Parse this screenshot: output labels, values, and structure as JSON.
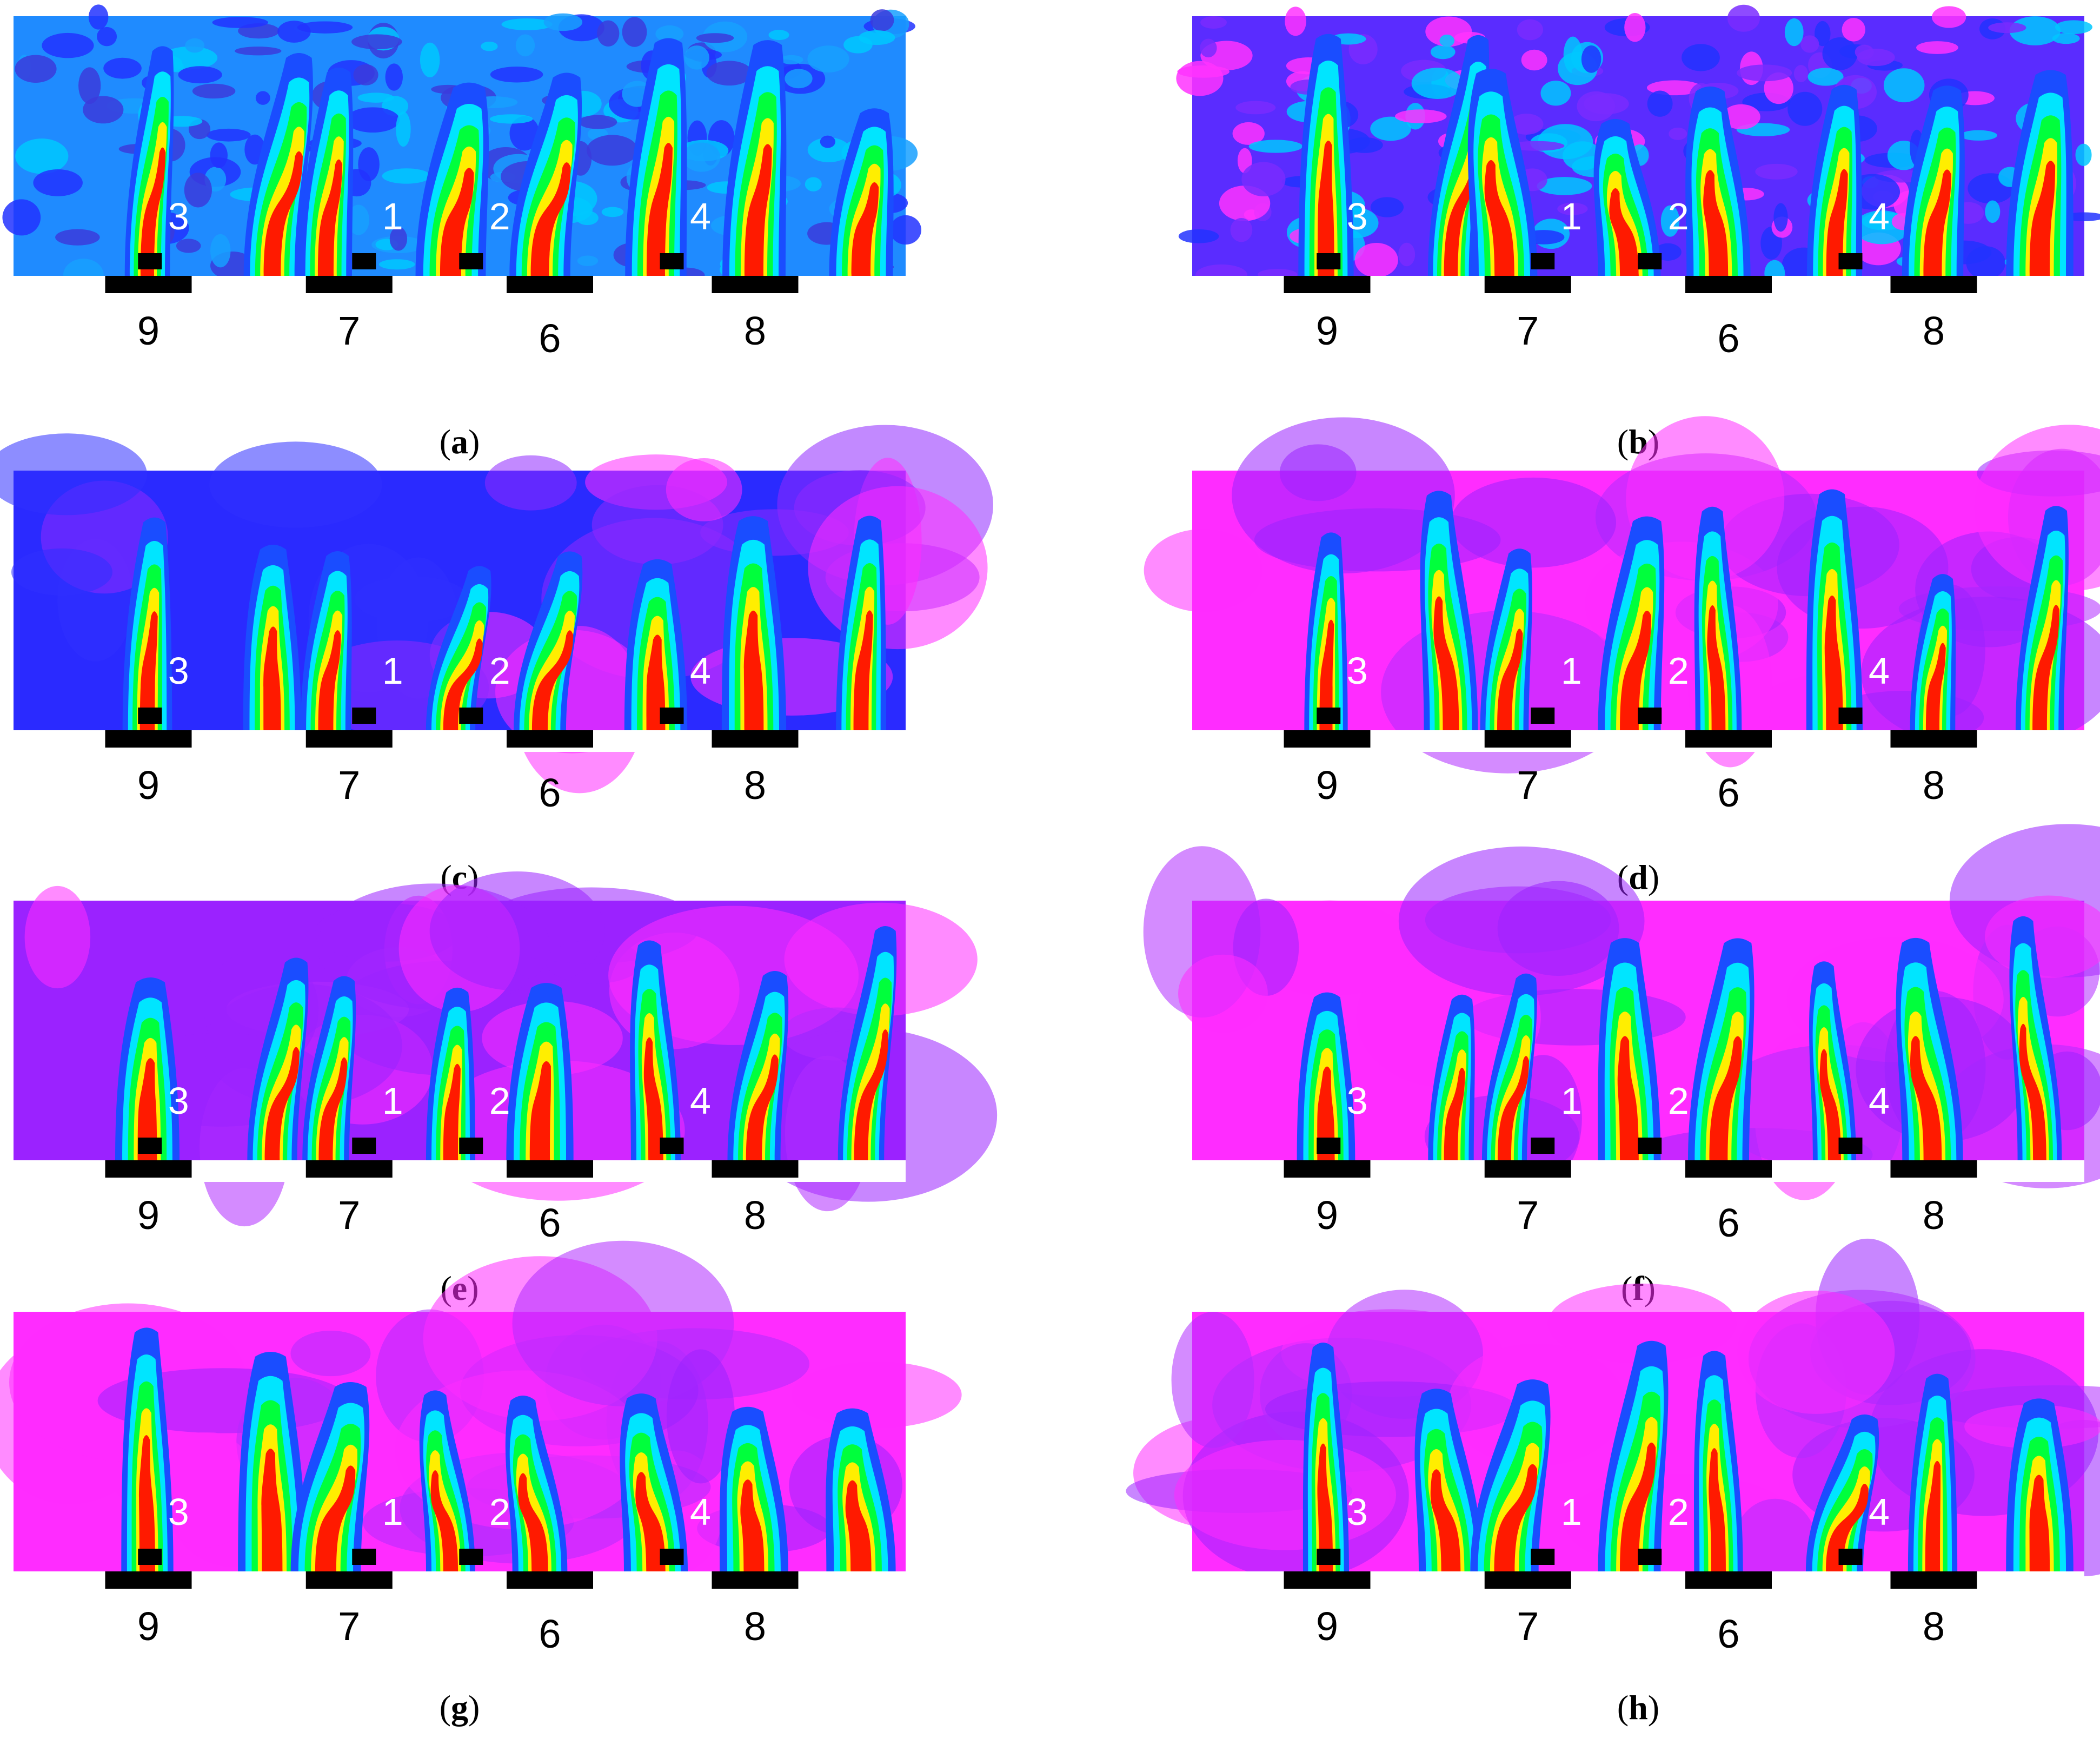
{
  "figure": {
    "panels": [
      {
        "id": "a",
        "caption": "a",
        "palette": "noisy_blue"
      },
      {
        "id": "b",
        "caption": "b",
        "palette": "noisy_purple"
      },
      {
        "id": "c",
        "caption": "c",
        "palette": "smooth_blue"
      },
      {
        "id": "d",
        "caption": "d",
        "palette": "smooth_magenta"
      },
      {
        "id": "e",
        "caption": "e",
        "palette": "smooth_violet"
      },
      {
        "id": "f",
        "caption": "f",
        "palette": "smooth_magenta"
      },
      {
        "id": "g",
        "caption": "g",
        "palette": "smooth_magenta"
      },
      {
        "id": "h",
        "caption": "h",
        "palette": "smooth_magenta"
      }
    ],
    "sensor_labels": [
      "3",
      "1",
      "2",
      "4"
    ],
    "bar_labels": [
      "9",
      "7",
      "6",
      "8"
    ],
    "colors": {
      "background_noisy_blue": "#1f8bff",
      "background_noisy_purple": "#5a2cff",
      "background_magenta": "#ff2cff",
      "background_violet": "#9b22ff",
      "background_blue": "#2a2aff",
      "plume_outer": "#1a4dff",
      "plume_cyan": "#00e5ff",
      "plume_green": "#00ff3c",
      "plume_yellow": "#ffee00",
      "plume_core": "#ff1a00",
      "marker": "#000000",
      "sensor_text": "#ffffff"
    }
  }
}
